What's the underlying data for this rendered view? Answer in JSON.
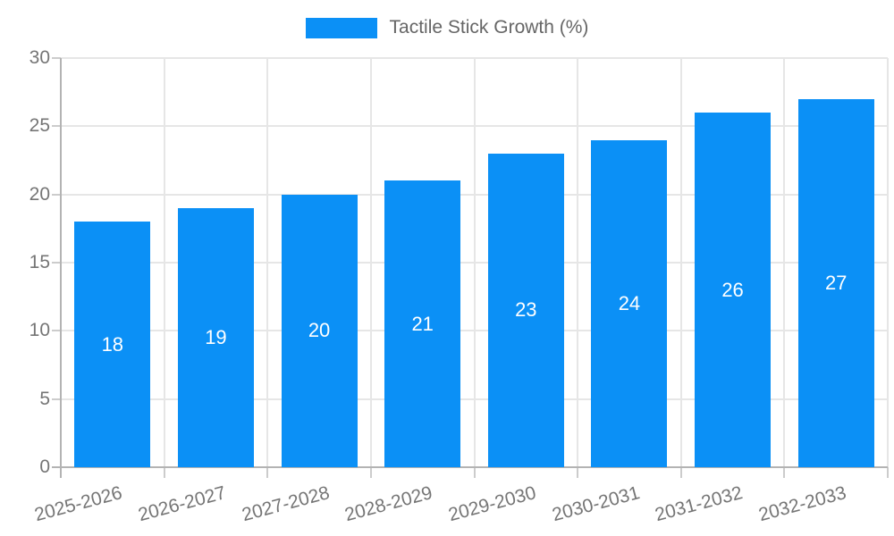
{
  "legend": {
    "label": "Tactile Stick Growth (%)"
  },
  "chart_data": {
    "type": "bar",
    "title": "Tactile Stick Growth (%)",
    "categories": [
      "2025-2026",
      "2026-2027",
      "2027-2028",
      "2028-2029",
      "2029-2030",
      "2030-2031",
      "2031-2032",
      "2032-2033"
    ],
    "values": [
      18,
      19,
      20,
      21,
      23,
      24,
      26,
      27
    ],
    "bar_labels": [
      "18",
      "19",
      "20",
      "21",
      "23",
      "24",
      "26",
      "27"
    ],
    "xlabel": "",
    "ylabel": "",
    "ylim": [
      0,
      30
    ],
    "yticks": [
      0,
      5,
      10,
      15,
      20,
      25,
      30
    ],
    "grid": true,
    "legend_position": "top",
    "colors": {
      "bar": "#0b90f6",
      "bar_label": "#ffffff",
      "grid": "#e6e6e6",
      "axis": "#b3b3b3",
      "tick_mark": "#cccccc",
      "tick_label": "#757575",
      "legend_text": "#666666"
    }
  }
}
